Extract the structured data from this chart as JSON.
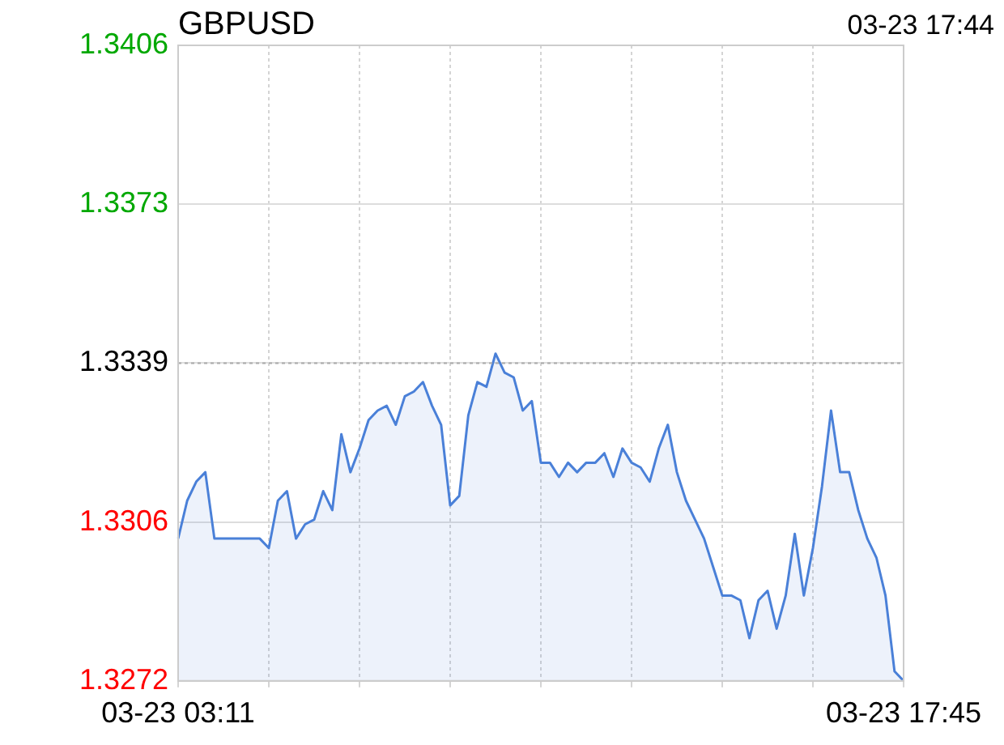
{
  "chart_data": {
    "type": "area",
    "title": "GBPUSD",
    "subtitle": "03-23 17:44",
    "categories": [
      "03-23 03:11",
      null,
      null,
      null,
      null,
      null,
      null,
      null,
      null,
      null,
      null,
      null,
      null,
      null,
      null,
      null,
      null,
      null,
      null,
      null,
      null,
      null,
      null,
      null,
      null,
      null,
      null,
      null,
      null,
      null,
      null,
      null,
      null,
      null,
      null,
      null,
      null,
      null,
      null,
      null,
      null,
      null,
      null,
      null,
      null,
      null,
      null,
      null,
      null,
      null,
      null,
      null,
      null,
      null,
      null,
      null,
      null,
      null,
      null,
      null,
      null,
      null,
      null,
      null,
      null,
      null,
      null,
      null,
      null,
      null,
      null,
      null,
      null,
      null,
      null,
      null,
      null,
      null,
      null,
      null,
      "03-23 17:45"
    ],
    "series": [
      {
        "color": "#4a80d8",
        "values": [
          1.3302,
          1.331,
          1.3314,
          1.3316,
          1.3302,
          1.3302,
          1.3302,
          1.3302,
          1.3302,
          1.3302,
          1.33,
          1.331,
          1.3312,
          1.3302,
          1.3305,
          1.3306,
          1.3312,
          1.3308,
          1.3324,
          1.3316,
          1.3321,
          1.3327,
          1.3329,
          1.333,
          1.3326,
          1.3332,
          1.3333,
          1.3335,
          1.333,
          1.3326,
          1.3309,
          1.3311,
          1.3328,
          1.3335,
          1.3334,
          1.3341,
          1.3337,
          1.3336,
          1.3329,
          1.3331,
          1.3318,
          1.3318,
          1.3315,
          1.3318,
          1.3316,
          1.3318,
          1.3318,
          1.332,
          1.3315,
          1.3321,
          1.3318,
          1.3317,
          1.3314,
          1.3321,
          1.3326,
          1.3316,
          1.331,
          1.3306,
          1.3302,
          1.3296,
          1.329,
          1.329,
          1.3289,
          1.3281,
          1.3289,
          1.3291,
          1.3283,
          1.329,
          1.3303,
          1.329,
          1.33,
          1.3313,
          1.3329,
          1.3316,
          1.3316,
          1.3308,
          1.3302,
          1.3298,
          1.329,
          1.3274,
          1.3272
        ]
      }
    ],
    "ylim": [
      1.3272,
      1.3406
    ],
    "yticks": [
      1.3272,
      {
        "value": 1.33055,
        "label": "1.3306"
      },
      1.3339,
      {
        "value": 1.33725,
        "label": "1.3373"
      },
      1.3406
    ],
    "ref_lines": [
      {
        "axis": "y",
        "value": 1.3339,
        "color": "#aaaaaa",
        "line_style": "dotted"
      }
    ],
    "grid": true
  }
}
